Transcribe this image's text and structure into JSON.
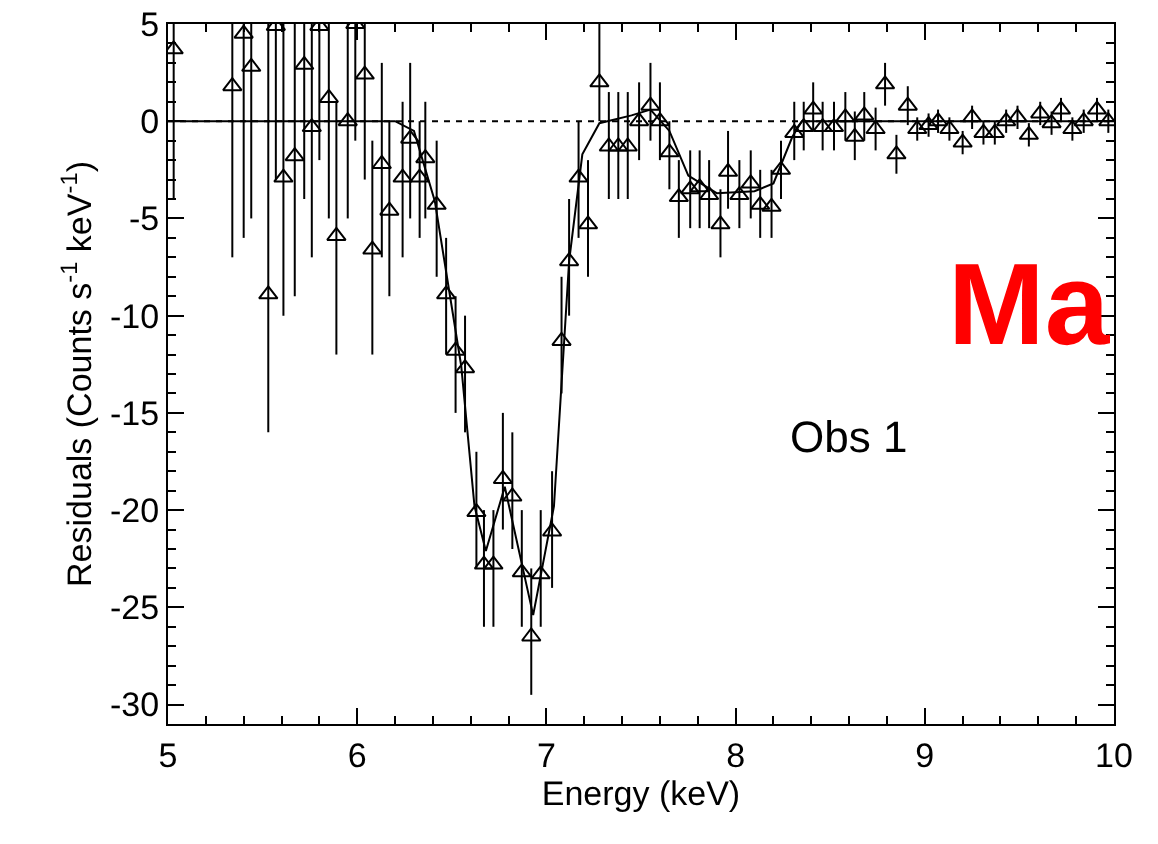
{
  "chart_data": {
    "type": "scatter",
    "xlabel": "Energy (keV)",
    "ylabel": "Residuals (Counts s$^{-1}$ keV$^{-1}$)",
    "xlim": [
      5,
      10
    ],
    "xticks": [
      5,
      6,
      7,
      8,
      9,
      10
    ],
    "ylim": [
      -31,
      5
    ],
    "yticks": [
      -30,
      -25,
      -20,
      -15,
      -10,
      -5,
      0,
      5
    ],
    "grid": false,
    "marker": "triangle",
    "annotations": [
      "Obs 1",
      "Ma"
    ],
    "ref_lines": [
      {
        "axis": "y",
        "value": 0,
        "line_style": "dotted",
        "color": "#000000"
      }
    ],
    "series": [
      {
        "color": "#000000",
        "x": [
          5.03,
          5.34,
          5.4,
          5.44,
          5.53,
          5.57,
          5.61,
          5.67,
          5.72,
          5.76,
          5.8,
          5.85,
          5.89,
          5.95,
          5.99,
          6.04,
          6.08,
          6.13,
          6.17,
          6.24,
          6.28,
          6.33,
          6.36,
          6.42,
          6.47,
          6.52,
          6.57,
          6.63,
          6.67,
          6.72,
          6.77,
          6.82,
          6.87,
          6.92,
          6.97,
          7.03,
          7.08,
          7.12,
          7.17,
          7.22,
          7.28,
          7.33,
          7.38,
          7.43,
          7.49,
          7.55,
          7.6,
          7.65,
          7.7,
          7.76,
          7.81,
          7.86,
          7.92,
          7.96,
          8.02,
          8.08,
          8.13,
          8.19,
          8.24,
          8.31,
          8.36,
          8.41,
          8.46,
          8.52,
          8.58,
          8.63,
          8.68,
          8.74,
          8.79,
          8.85,
          8.91,
          8.96,
          9.02,
          9.07,
          9.13,
          9.2,
          9.25,
          9.31,
          9.37,
          9.43,
          9.49,
          9.55,
          9.61,
          9.67,
          9.72,
          9.78,
          9.84,
          9.91,
          9.97
        ],
        "values": [
          3.7,
          1.8,
          4.5,
          2.8,
          -8.9,
          4.9,
          -2.9,
          -1.8,
          2.9,
          -0.3,
          4.9,
          1.2,
          -5.9,
          0.0,
          5.0,
          2.4,
          -6.6,
          -2.2,
          -4.6,
          -2.9,
          -0.9,
          -2.9,
          -1.9,
          -4.3,
          -8.9,
          -11.8,
          -12.7,
          -20.1,
          -22.8,
          -22.8,
          -18.4,
          -19.3,
          -23.2,
          -26.5,
          -23.3,
          -21.1,
          -11.3,
          -7.2,
          -2.9,
          -5.3,
          2.0,
          -1.3,
          -1.3,
          -1.3,
          0.0,
          0.8,
          0.0,
          -1.6,
          -3.9,
          -3.5,
          -3.4,
          -3.8,
          -5.3,
          -2.6,
          -3.8,
          -3.2,
          -4.3,
          -4.4,
          -2.5,
          -0.6,
          -0.3,
          0.6,
          -0.3,
          -0.3,
          0.2,
          -0.8,
          0.3,
          -0.4,
          1.9,
          -1.7,
          0.8,
          -0.4,
          -0.2,
          0.0,
          -0.4,
          -1.1,
          0.2,
          -0.6,
          -0.6,
          0.0,
          0.2,
          -0.7,
          0.4,
          -0.1,
          0.6,
          -0.4,
          0.0,
          0.6,
          0.0
        ],
        "errors": [
          [
            -4,
            5
          ],
          [
            -7,
            5
          ],
          [
            -6,
            5
          ],
          [
            -5,
            5
          ],
          [
            -16,
            5
          ],
          [
            -3,
            5
          ],
          [
            -10,
            5
          ],
          [
            -9,
            5
          ],
          [
            -4,
            5
          ],
          [
            -7,
            5
          ],
          [
            -2,
            5
          ],
          [
            -5,
            5
          ],
          [
            -12,
            1
          ],
          [
            -5,
            5
          ],
          [
            -1,
            5
          ],
          [
            -3,
            5
          ],
          [
            -12,
            -1
          ],
          [
            -7,
            3
          ],
          [
            -9,
            0
          ],
          [
            -7,
            1
          ],
          [
            -5,
            3
          ],
          [
            -6,
            0
          ],
          [
            -5,
            1
          ],
          [
            -8,
            -1
          ],
          [
            -12,
            -6
          ],
          [
            -15,
            -9
          ],
          [
            -16,
            -10
          ],
          [
            -23,
            -17
          ],
          [
            -26,
            -20
          ],
          [
            -26,
            -20
          ],
          [
            -21,
            -15
          ],
          [
            -22,
            -16
          ],
          [
            -26,
            -20
          ],
          [
            -29.5,
            -23
          ],
          [
            -26,
            -20
          ],
          [
            -24,
            -18
          ],
          [
            -14,
            -8
          ],
          [
            -10,
            -4
          ],
          [
            -6,
            0
          ],
          [
            -8,
            -2
          ],
          [
            0,
            5
          ],
          [
            -4,
            1.5
          ],
          [
            -4,
            1.5
          ],
          [
            -4,
            1.5
          ],
          [
            -2,
            2
          ],
          [
            -1,
            3
          ],
          [
            -2,
            2
          ],
          [
            -3.5,
            0
          ],
          [
            -6,
            -2
          ],
          [
            -5.5,
            -1.5
          ],
          [
            -5.5,
            -1.5
          ],
          [
            -5.5,
            -2
          ],
          [
            -7,
            -3.5
          ],
          [
            -4.5,
            -0.5
          ],
          [
            -5.5,
            -2
          ],
          [
            -5,
            -1.5
          ],
          [
            -6,
            -2.5
          ],
          [
            -6,
            -2.5
          ],
          [
            -4,
            -1
          ],
          [
            -2,
            1
          ],
          [
            -1.5,
            1
          ],
          [
            -0.5,
            2
          ],
          [
            -1.5,
            1
          ],
          [
            -1.5,
            1
          ],
          [
            -1,
            1.5
          ],
          [
            -2,
            0.5
          ],
          [
            -1,
            1.5
          ],
          [
            -1.5,
            0.7
          ],
          [
            0.8,
            3
          ],
          [
            -2.7,
            -0.7
          ],
          [
            -0.2,
            1.8
          ],
          [
            -1,
            0.2
          ],
          [
            -0.8,
            0.4
          ],
          [
            -0.6,
            0.6
          ],
          [
            -1,
            0.2
          ],
          [
            -1.7,
            -0.5
          ],
          [
            -0.4,
            0.8
          ],
          [
            -1.2,
            0
          ],
          [
            -1.2,
            0
          ],
          [
            -0.6,
            0.6
          ],
          [
            -0.4,
            0.8
          ],
          [
            -1.3,
            -0.1
          ],
          [
            -0.2,
            1
          ],
          [
            -0.7,
            0.5
          ],
          [
            0,
            1.2
          ],
          [
            -1,
            0.2
          ],
          [
            -0.6,
            0.6
          ],
          [
            0,
            1.2
          ],
          [
            -0.6,
            0.6
          ]
        ]
      },
      {
        "type": "line",
        "color": "#000000",
        "marker": "none",
        "x": [
          5,
          6.2,
          6.3,
          6.41,
          6.55,
          6.62,
          6.68,
          6.78,
          6.93,
          7.04,
          7.12,
          7.19,
          7.28,
          7.45,
          7.55,
          7.65,
          7.75,
          7.9,
          8.1,
          8.2,
          8.3,
          8.35,
          10
        ],
        "values": [
          0,
          0,
          -0.5,
          -4.1,
          -12.6,
          -19.8,
          -22.1,
          -18.8,
          -25.4,
          -19.8,
          -7.2,
          -1.7,
          -0.1,
          0.3,
          0.6,
          -0.5,
          -2.8,
          -3.7,
          -3.6,
          -3.2,
          -0.8,
          0,
          0
        ]
      }
    ]
  }
}
